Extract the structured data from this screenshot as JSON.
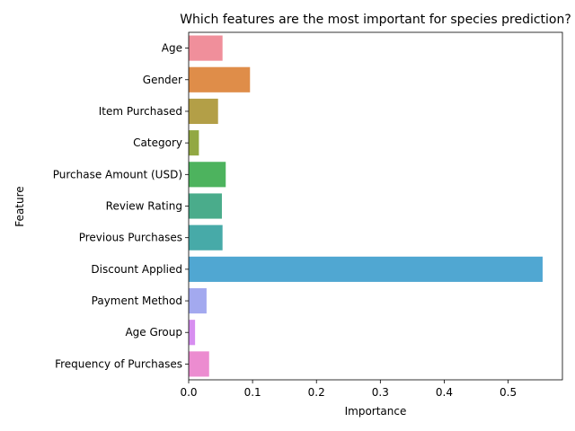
{
  "chart_data": {
    "type": "bar",
    "orientation": "horizontal",
    "title": "Which features are the most important for species prediction?",
    "xlabel": "Importance",
    "ylabel": "Feature",
    "xlim": [
      0,
      0.585
    ],
    "xticks": [
      "0.0",
      "0.1",
      "0.2",
      "0.3",
      "0.4",
      "0.5"
    ],
    "grid": false,
    "categories": [
      "Age",
      "Gender",
      "Item Purchased",
      "Category",
      "Purchase Amount (USD)",
      "Review Rating",
      "Previous Purchases",
      "Discount Applied",
      "Payment Method",
      "Age Group",
      "Frequency of Purchases"
    ],
    "values": [
      0.053,
      0.096,
      0.046,
      0.016,
      0.058,
      0.052,
      0.053,
      0.554,
      0.028,
      0.01,
      0.032
    ],
    "colors": [
      "#f08f9b",
      "#df8d49",
      "#b39f47",
      "#92a843",
      "#4db35e",
      "#4aac8b",
      "#47aaa8",
      "#50a7d2",
      "#a3a9ef",
      "#d78ef0",
      "#ec8cd0"
    ]
  }
}
